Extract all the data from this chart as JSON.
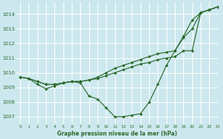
{
  "title": "Graphe pression niveau de la mer (hPa)",
  "background_color": "#cce8ee",
  "grid_color": "#ffffff",
  "line_color": "#2d6a2d",
  "xlim": [
    -0.5,
    23
  ],
  "ylim": [
    1006.5,
    1014.8
  ],
  "yticks": [
    1007,
    1008,
    1009,
    1010,
    1011,
    1012,
    1013,
    1014
  ],
  "xticks": [
    0,
    1,
    2,
    3,
    4,
    5,
    6,
    7,
    8,
    9,
    10,
    11,
    12,
    13,
    14,
    15,
    16,
    17,
    18,
    19,
    20,
    21,
    22,
    23
  ],
  "series": [
    [
      1009.7,
      1009.6,
      1009.2,
      1008.9,
      1009.1,
      1009.3,
      1009.4,
      1009.3,
      1008.4,
      1008.2,
      1007.6,
      1007.0,
      1007.0,
      1007.1,
      1007.2,
      1008.0,
      1009.2,
      1010.5,
      1011.5,
      1012.5,
      1013.6,
      1014.1,
      1014.3,
      1014.5
    ],
    [
      1009.7,
      1009.6,
      1009.4,
      1009.2,
      1009.2,
      1009.3,
      1009.4,
      1009.4,
      1009.5,
      1009.6,
      1009.8,
      1010.0,
      1010.2,
      1010.4,
      1010.6,
      1010.7,
      1010.9,
      1011.0,
      1011.1,
      1011.5,
      1011.5,
      1014.1,
      1014.3,
      1014.5
    ],
    [
      1009.7,
      1009.6,
      1009.4,
      1009.2,
      1009.2,
      1009.3,
      1009.4,
      1009.4,
      1009.5,
      1009.7,
      1010.0,
      1010.3,
      1010.5,
      1010.7,
      1010.9,
      1011.1,
      1011.3,
      1011.4,
      1011.5,
      1012.4,
      1013.0,
      1014.1,
      1014.3,
      1014.5
    ]
  ]
}
